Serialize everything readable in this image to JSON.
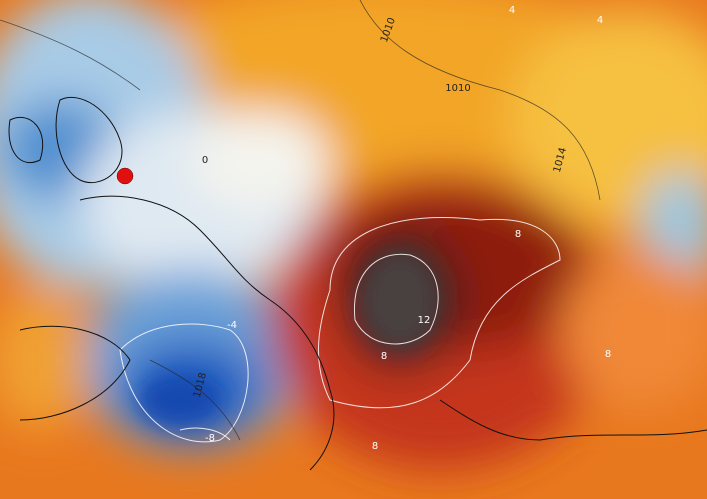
{
  "map": {
    "contour_labels": [
      "1010",
      "1010",
      "1014",
      "4",
      "4",
      "8",
      "12",
      "8",
      "8",
      "-4",
      "1018",
      "-8",
      "0",
      "8"
    ]
  }
}
